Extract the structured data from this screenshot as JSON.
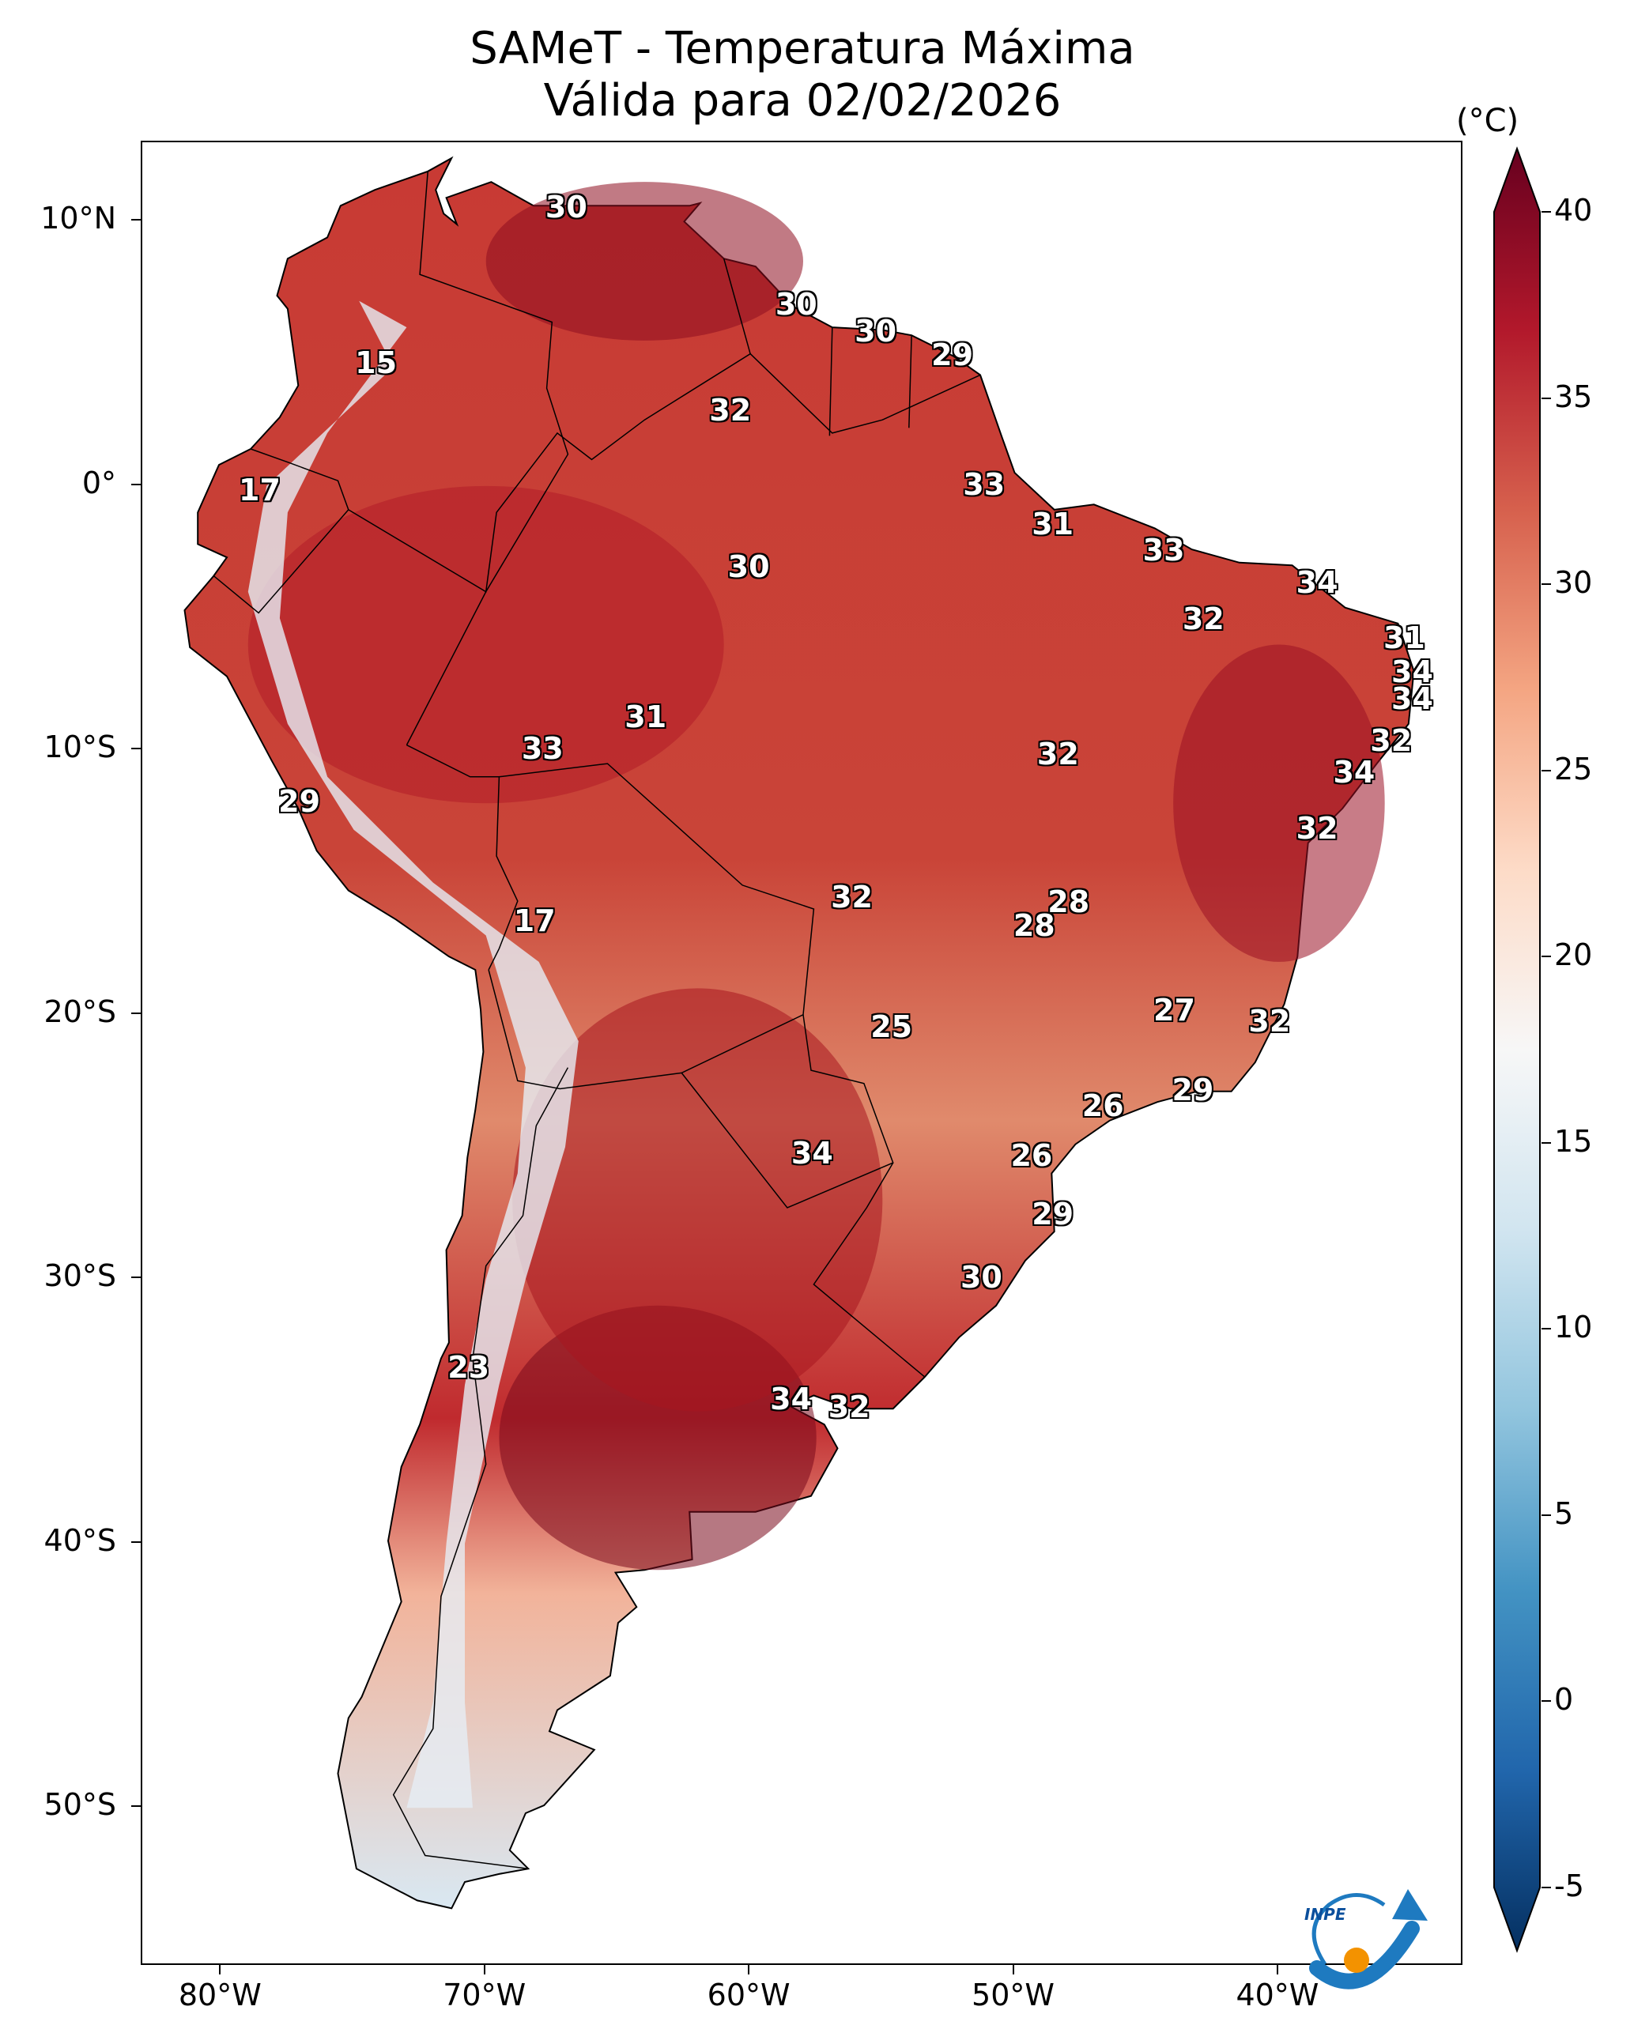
{
  "title": {
    "line1": "SAMeT - Temperatura Máxima",
    "line2": "Válida para 02/02/2026"
  },
  "axes": {
    "lat_labels": [
      "10°N",
      "0°",
      "10°S",
      "20°S",
      "30°S",
      "40°S",
      "50°S"
    ],
    "lon_labels": [
      "80°W",
      "70°W",
      "60°W",
      "50°W",
      "40°W"
    ],
    "lon_range": [
      -83,
      -33
    ],
    "lat_range": [
      -56,
      13
    ]
  },
  "colorbar": {
    "units": "(°C)",
    "min": -5,
    "max": 40,
    "tick_labels": [
      "40",
      "35",
      "30",
      "25",
      "20",
      "15",
      "10",
      "5",
      "0",
      "-5"
    ],
    "colors": [
      "#053061",
      "#2166ac",
      "#4393c3",
      "#92c5de",
      "#d1e5f0",
      "#f7f7f7",
      "#fddbc7",
      "#f4a582",
      "#d6604d",
      "#b2182b",
      "#67001f"
    ]
  },
  "stations": [
    {
      "value": "30",
      "lon": -66.9,
      "lat": 10.5
    },
    {
      "value": "30",
      "lon": -58.2,
      "lat": 6.8
    },
    {
      "value": "30",
      "lon": -55.2,
      "lat": 5.8
    },
    {
      "value": "29",
      "lon": -52.3,
      "lat": 4.9
    },
    {
      "value": "15",
      "lon": -74.1,
      "lat": 4.6
    },
    {
      "value": "32",
      "lon": -60.7,
      "lat": 2.8
    },
    {
      "value": "17",
      "lon": -78.5,
      "lat": -0.2
    },
    {
      "value": "33",
      "lon": -51.1,
      "lat": 0.0
    },
    {
      "value": "31",
      "lon": -48.5,
      "lat": -1.5
    },
    {
      "value": "33",
      "lon": -44.3,
      "lat": -2.5
    },
    {
      "value": "30",
      "lon": -60.0,
      "lat": -3.1
    },
    {
      "value": "34",
      "lon": -38.5,
      "lat": -3.7
    },
    {
      "value": "32",
      "lon": -42.8,
      "lat": -5.1
    },
    {
      "value": "31",
      "lon": -35.2,
      "lat": -5.8
    },
    {
      "value": "34",
      "lon": -34.9,
      "lat": -7.1
    },
    {
      "value": "34",
      "lon": -34.9,
      "lat": -8.1
    },
    {
      "value": "31",
      "lon": -63.9,
      "lat": -8.8
    },
    {
      "value": "32",
      "lon": -35.7,
      "lat": -9.7
    },
    {
      "value": "33",
      "lon": -67.8,
      "lat": -10.0
    },
    {
      "value": "32",
      "lon": -48.3,
      "lat": -10.2
    },
    {
      "value": "34",
      "lon": -37.1,
      "lat": -10.9
    },
    {
      "value": "29",
      "lon": -77.0,
      "lat": -12.0
    },
    {
      "value": "32",
      "lon": -38.5,
      "lat": -13.0
    },
    {
      "value": "32",
      "lon": -56.1,
      "lat": -15.6
    },
    {
      "value": "28",
      "lon": -47.9,
      "lat": -15.8
    },
    {
      "value": "28",
      "lon": -49.2,
      "lat": -16.7
    },
    {
      "value": "17",
      "lon": -68.1,
      "lat": -16.5
    },
    {
      "value": "27",
      "lon": -43.9,
      "lat": -19.9
    },
    {
      "value": "25",
      "lon": -54.6,
      "lat": -20.5
    },
    {
      "value": "32",
      "lon": -40.3,
      "lat": -20.3
    },
    {
      "value": "29",
      "lon": -43.2,
      "lat": -22.9
    },
    {
      "value": "26",
      "lon": -46.6,
      "lat": -23.5
    },
    {
      "value": "34",
      "lon": -57.6,
      "lat": -25.3
    },
    {
      "value": "26",
      "lon": -49.3,
      "lat": -25.4
    },
    {
      "value": "29",
      "lon": -48.5,
      "lat": -27.6
    },
    {
      "value": "30",
      "lon": -51.2,
      "lat": -30.0
    },
    {
      "value": "23",
      "lon": -70.6,
      "lat": -33.4
    },
    {
      "value": "34",
      "lon": -58.4,
      "lat": -34.6
    },
    {
      "value": "32",
      "lon": -56.2,
      "lat": -34.9
    }
  ],
  "logo": {
    "text": "INPE"
  }
}
